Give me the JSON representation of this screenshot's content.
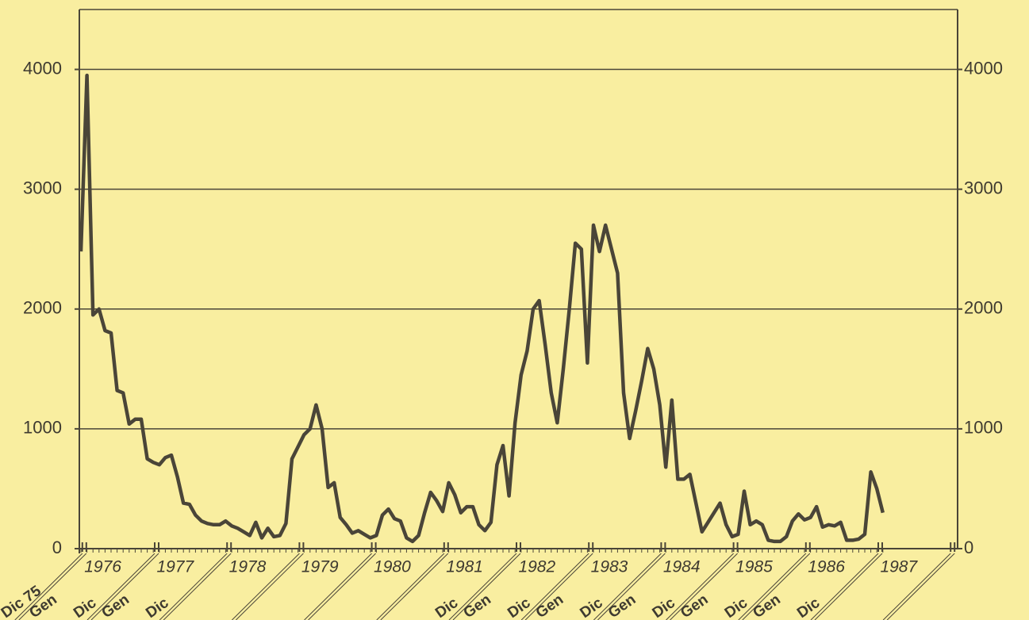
{
  "chart_data": {
    "type": "line",
    "categories": [
      "Dic 75",
      "Gen",
      null,
      null,
      null,
      null,
      null,
      null,
      null,
      null,
      null,
      null,
      "Dic",
      "Gen",
      null,
      null,
      null,
      null,
      null,
      null,
      null,
      null,
      null,
      null,
      "Dic",
      null,
      null,
      null,
      null,
      null,
      null,
      null,
      null,
      null,
      null,
      null,
      null,
      null,
      null,
      null,
      null,
      null,
      null,
      null,
      null,
      null,
      null,
      null,
      null,
      null,
      null,
      null,
      null,
      null,
      null,
      null,
      null,
      null,
      null,
      null,
      null,
      null,
      null,
      null,
      null,
      null,
      null,
      null,
      null,
      null,
      null,
      null,
      "Dic",
      "Gen",
      null,
      null,
      null,
      null,
      null,
      null,
      null,
      null,
      null,
      null,
      "Dic",
      "Gen",
      null,
      null,
      null,
      null,
      null,
      null,
      null,
      null,
      null,
      null,
      "Dic",
      "Gen",
      null,
      null,
      null,
      null,
      null,
      null,
      null,
      null,
      null,
      null,
      "Dic",
      "Gen",
      null,
      null,
      null,
      null,
      null,
      null,
      null,
      null,
      null,
      null,
      "Dic",
      "Gen",
      null,
      null,
      null,
      null,
      null,
      null,
      null,
      null,
      null,
      null,
      "Dic",
      null
    ],
    "values": [
      2480,
      3950,
      1950,
      2000,
      1820,
      1800,
      1320,
      1300,
      1040,
      1080,
      1080,
      750,
      720,
      700,
      760,
      780,
      600,
      380,
      370,
      280,
      230,
      210,
      200,
      200,
      230,
      190,
      170,
      140,
      110,
      220,
      90,
      170,
      100,
      110,
      210,
      750,
      850,
      950,
      1000,
      1200,
      1000,
      510,
      550,
      260,
      200,
      130,
      150,
      120,
      90,
      110,
      280,
      330,
      250,
      230,
      90,
      60,
      110,
      300,
      470,
      400,
      310,
      550,
      450,
      300,
      350,
      350,
      200,
      150,
      220,
      700,
      860,
      440,
      1050,
      1450,
      1650,
      2000,
      2070,
      1700,
      1300,
      1050,
      1500,
      2000,
      2550,
      2500,
      1550,
      2700,
      2480,
      2700,
      2500,
      2300,
      1300,
      920,
      1150,
      1400,
      1670,
      1500,
      1200,
      680,
      1240,
      580,
      580,
      620,
      380,
      140,
      220,
      300,
      380,
      200,
      100,
      120,
      480,
      200,
      230,
      200,
      70,
      60,
      60,
      100,
      230,
      290,
      240,
      260,
      350,
      180,
      200,
      190,
      220,
      70,
      70,
      80,
      120,
      640,
      500,
      300
    ],
    "year_labels": [
      "1976",
      "1977",
      "1978",
      "1979",
      "1980",
      "1981",
      "1982",
      "1983",
      "1984",
      "1985",
      "1986",
      "1987"
    ],
    "color": "#4a4538",
    "ylim": [
      0,
      4500
    ],
    "yticks": [
      0,
      1000,
      2000,
      3000,
      4000
    ],
    "y2lim": [
      0,
      4500
    ],
    "y2ticks": [
      0,
      1000,
      2000,
      3000,
      4000
    ],
    "grid": true
  }
}
